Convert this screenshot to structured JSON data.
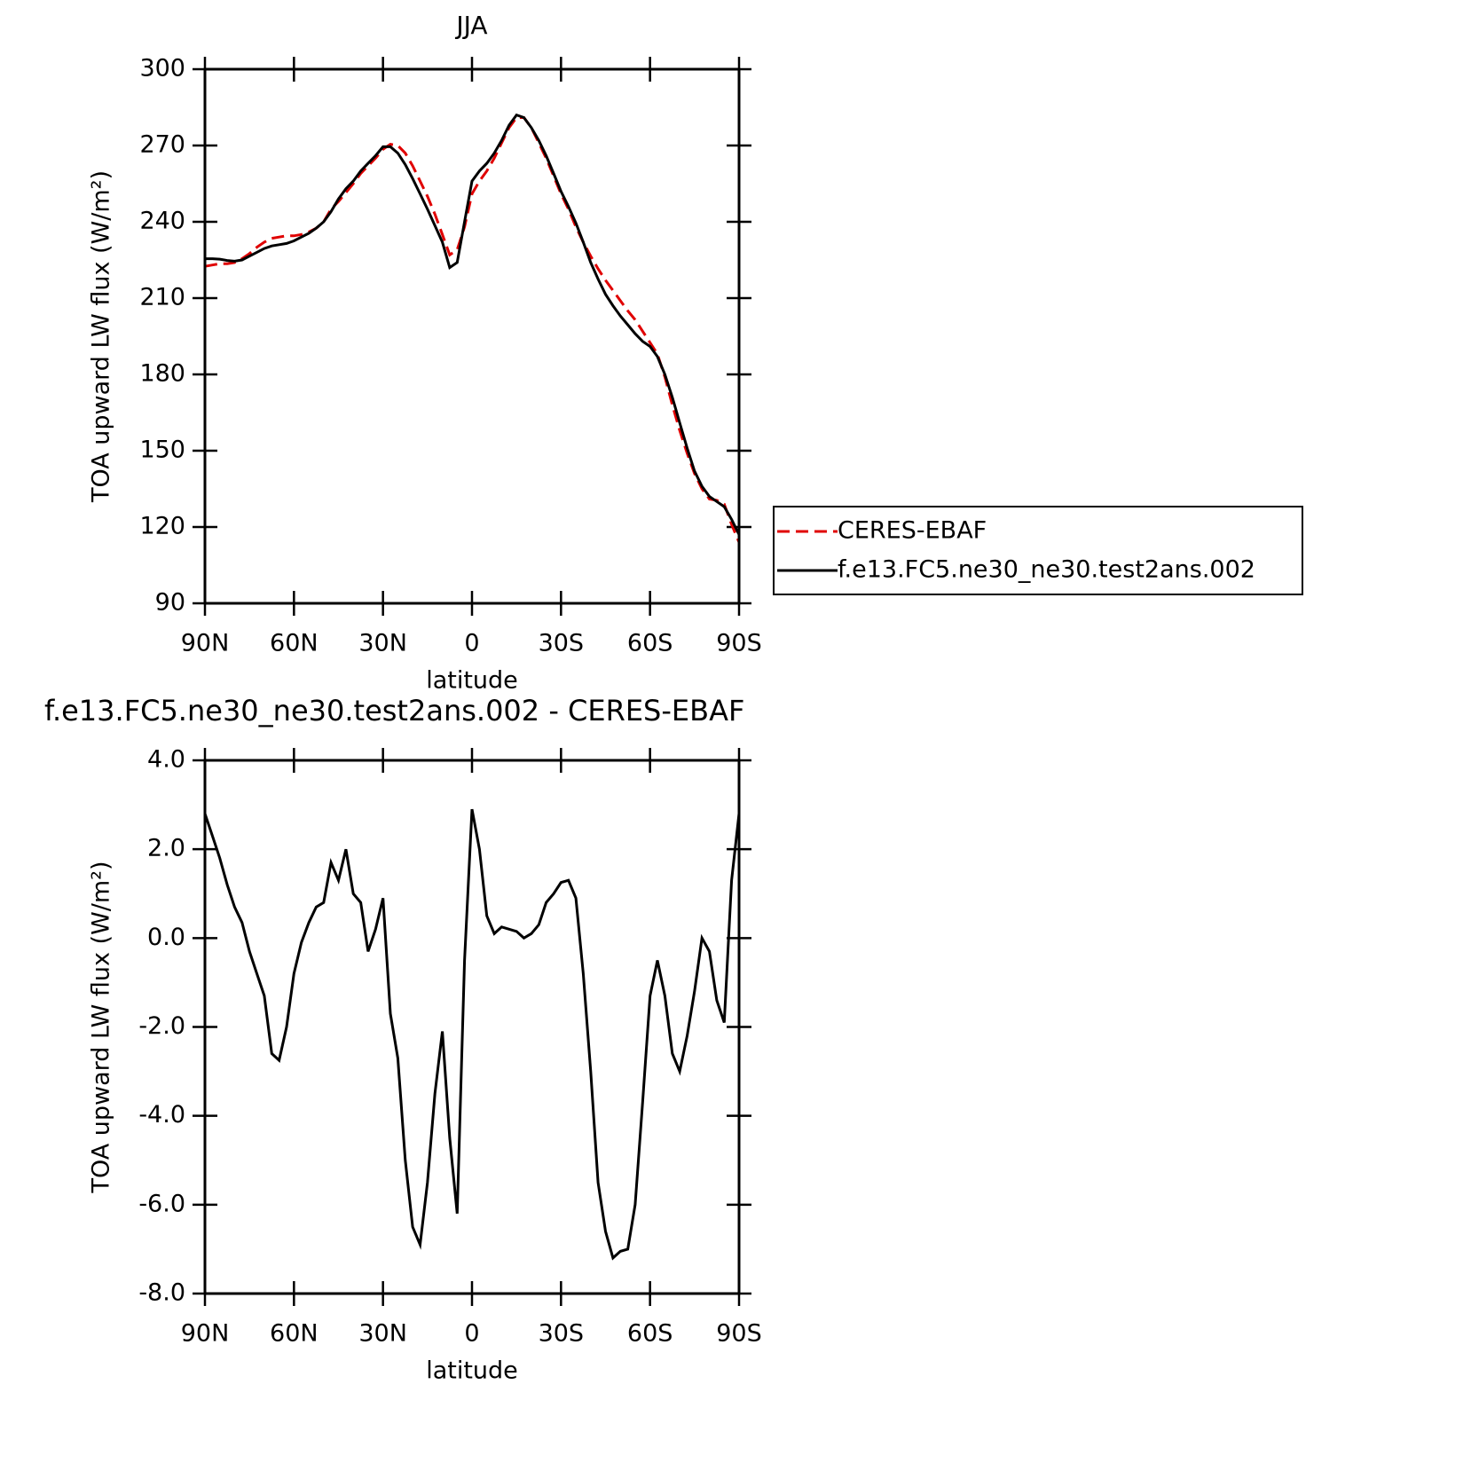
{
  "chart_data": [
    {
      "type": "line",
      "title": "JJA",
      "xlabel": "latitude",
      "ylabel": "TOA upward LW flux (W/m²)",
      "xlim": [
        90,
        -90
      ],
      "xticks": [
        {
          "value": 90,
          "label": "90N"
        },
        {
          "value": 60,
          "label": "60N"
        },
        {
          "value": 30,
          "label": "30N"
        },
        0,
        {
          "value": -30,
          "label": "30S"
        },
        {
          "value": -60,
          "label": "60S"
        },
        {
          "value": -90,
          "label": "90S"
        }
      ],
      "ylim": [
        90,
        300
      ],
      "yticks": [
        90,
        120,
        150,
        180,
        210,
        240,
        270,
        300
      ],
      "x": [
        90,
        87.5,
        85,
        82.5,
        80,
        77.5,
        75,
        72.5,
        70,
        67.5,
        65,
        62.5,
        60,
        57.5,
        55,
        52.5,
        50,
        47.5,
        45,
        42.5,
        40,
        37.5,
        35,
        32.5,
        30,
        27.5,
        25,
        22.5,
        20,
        17.5,
        15,
        12.5,
        10,
        7.5,
        5,
        2.5,
        0,
        -2.5,
        -5,
        -7.5,
        -10,
        -12.5,
        -15,
        -17.5,
        -20,
        -22.5,
        -25,
        -27.5,
        -30,
        -32.5,
        -35,
        -37.5,
        -40,
        -42.5,
        -45,
        -47.5,
        -50,
        -52.5,
        -55,
        -57.5,
        -60,
        -62.5,
        -65,
        -67.5,
        -70,
        -72.5,
        -75,
        -77.5,
        -80,
        -82.5,
        -85,
        -87.5,
        -90
      ],
      "legend": "right",
      "series": [
        {
          "name": "CERES-EBAF",
          "color": "#e00000",
          "linestyle": "dashed",
          "values": [
            222.5,
            223,
            223.5,
            223.5,
            224,
            225.5,
            227.5,
            230,
            232,
            233.5,
            234,
            234.5,
            234.5,
            235,
            236,
            237.5,
            240,
            245,
            248,
            251.5,
            255,
            259,
            262,
            265,
            268.5,
            270.5,
            270,
            267,
            262,
            256,
            250,
            243,
            235,
            227,
            229,
            238,
            251,
            256,
            260,
            265,
            271,
            277,
            281,
            281,
            277,
            271,
            265,
            258,
            251,
            245,
            238,
            232,
            226.5,
            221.5,
            217,
            213,
            209,
            205,
            201.5,
            197,
            192.5,
            188,
            179,
            168,
            158,
            149,
            141,
            135,
            131,
            130.5,
            129,
            121,
            114
          ]
        },
        {
          "name": "f.e13.FC5.ne30_ne30.test2ans.002",
          "color": "#000000",
          "linestyle": "solid",
          "values": [
            225.5,
            225.5,
            225.3,
            224.8,
            224.5,
            225,
            226.5,
            228,
            229.5,
            230.5,
            231,
            231.5,
            232.5,
            234,
            235.5,
            237.5,
            240,
            244,
            249,
            253,
            256,
            260,
            263,
            266,
            269.5,
            269.5,
            267,
            262.5,
            257,
            251,
            245,
            238.5,
            232,
            222,
            224,
            240,
            256,
            260,
            263,
            267,
            272,
            278,
            282,
            281,
            277,
            272,
            266,
            259,
            252,
            246,
            239.5,
            232,
            224,
            217.5,
            211.5,
            207,
            203,
            199.5,
            196,
            193,
            191,
            187,
            180,
            171,
            161,
            151,
            142,
            136,
            132,
            130,
            128,
            123,
            117
          ]
        }
      ]
    },
    {
      "type": "line",
      "title": "f.e13.FC5.ne30_ne30.test2ans.002 - CERES-EBAF",
      "xlabel": "latitude",
      "ylabel": "TOA upward LW flux (W/m²)",
      "xlim": [
        90,
        -90
      ],
      "xticks": [
        {
          "value": 90,
          "label": "90N"
        },
        {
          "value": 60,
          "label": "60N"
        },
        {
          "value": 30,
          "label": "30N"
        },
        0,
        {
          "value": -30,
          "label": "30S"
        },
        {
          "value": -60,
          "label": "60S"
        },
        {
          "value": -90,
          "label": "90S"
        }
      ],
      "ylim": [
        -8,
        4
      ],
      "yticks": [
        {
          "value": -8,
          "label": "-8.0"
        },
        {
          "value": -6,
          "label": "-6.0"
        },
        {
          "value": -4,
          "label": "-4.0"
        },
        {
          "value": -2,
          "label": "-2.0"
        },
        {
          "value": 0,
          "label": "0.0"
        },
        {
          "value": 2,
          "label": "2.0"
        },
        {
          "value": 4,
          "label": "4.0"
        }
      ],
      "x": [
        90,
        87.5,
        85,
        82.5,
        80,
        77.5,
        75,
        72.5,
        70,
        67.5,
        65,
        62.5,
        60,
        57.5,
        55,
        52.5,
        50,
        47.5,
        45,
        42.5,
        40,
        37.5,
        35,
        32.5,
        30,
        27.5,
        25,
        22.5,
        20,
        17.5,
        15,
        12.5,
        10,
        7.5,
        5,
        2.5,
        0,
        -2.5,
        -5,
        -7.5,
        -10,
        -12.5,
        -15,
        -17.5,
        -20,
        -22.5,
        -25,
        -27.5,
        -30,
        -32.5,
        -35,
        -37.5,
        -40,
        -42.5,
        -45,
        -47.5,
        -50,
        -52.5,
        -55,
        -57.5,
        -60,
        -62.5,
        -65,
        -67.5,
        -70,
        -72.5,
        -75,
        -77.5,
        -80,
        -82.5,
        -85,
        -87.5,
        -90
      ],
      "series": [
        {
          "color": "#000000",
          "linestyle": "solid",
          "values": [
            2.8,
            2.3,
            1.8,
            1.2,
            0.7,
            0.35,
            -0.3,
            -0.8,
            -1.3,
            -2.6,
            -2.75,
            -2.0,
            -0.8,
            -0.1,
            0.35,
            0.7,
            0.8,
            1.7,
            1.3,
            2.0,
            1.0,
            0.8,
            -0.3,
            0.2,
            0.9,
            -1.7,
            -2.7,
            -5.0,
            -6.5,
            -6.9,
            -5.5,
            -3.5,
            -2.1,
            -4.5,
            -6.2,
            -0.5,
            2.9,
            2.0,
            0.5,
            0.1,
            0.25,
            0.2,
            0.15,
            0.0,
            0.1,
            0.3,
            0.8,
            1.0,
            1.25,
            1.3,
            0.9,
            -0.8,
            -3.0,
            -5.5,
            -6.6,
            -7.2,
            -7.05,
            -7.0,
            -6.0,
            -3.7,
            -1.3,
            -0.5,
            -1.3,
            -2.6,
            -3.0,
            -2.2,
            -1.2,
            0.0,
            -0.3,
            -1.4,
            -1.9,
            1.3,
            2.8
          ]
        }
      ]
    }
  ]
}
